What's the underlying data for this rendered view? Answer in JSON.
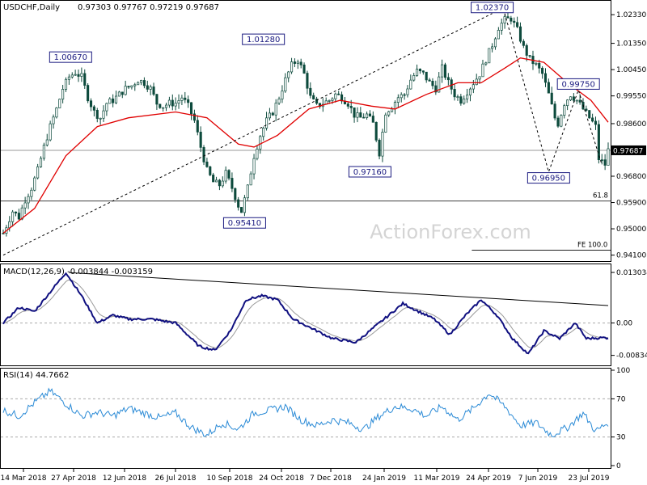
{
  "chart_data": {
    "type": "candlestick",
    "instrument": "USDCHF,Daily",
    "ohlc_text": "0.97303 0.97767 0.97219 0.97687",
    "watermark": "ActionForex.com",
    "x_ticks": [
      "14 Mar 2018",
      "27 Apr 2018",
      "12 Jun 2018",
      "26 Jul 2018",
      "10 Sep 2018",
      "24 Oct 2018",
      "7 Dec 2018",
      "24 Jan 2019",
      "11 Mar 2019",
      "24 Apr 2019",
      "7 Jun 2019",
      "23 Jul 2019"
    ],
    "price": {
      "y_ticks": [
        "1.02330",
        "1.01350",
        "1.00450",
        "0.99550",
        "0.98600",
        "0.97687",
        "0.96800",
        "0.95900",
        "0.95000",
        "0.94100"
      ],
      "ylim": [
        0.9395,
        1.0275
      ],
      "current": 0.97687,
      "current_label": "0.97687",
      "anchors": [
        {
          "d": 0,
          "p": 0.9485
        },
        {
          "d": 6,
          "p": 0.956
        },
        {
          "d": 10,
          "p": 0.954
        },
        {
          "d": 14,
          "p": 0.96
        },
        {
          "d": 18,
          "p": 0.964
        },
        {
          "d": 22,
          "p": 0.97
        },
        {
          "d": 26,
          "p": 0.978
        },
        {
          "d": 30,
          "p": 0.985
        },
        {
          "d": 34,
          "p": 0.991
        },
        {
          "d": 38,
          "p": 0.998
        },
        {
          "d": 42,
          "p": 1.002
        },
        {
          "d": 46,
          "p": 1.0035
        },
        {
          "d": 50,
          "p": 1.002
        },
        {
          "d": 54,
          "p": 0.995
        },
        {
          "d": 58,
          "p": 0.99
        },
        {
          "d": 62,
          "p": 0.988
        },
        {
          "d": 66,
          "p": 0.993
        },
        {
          "d": 70,
          "p": 0.994
        },
        {
          "d": 74,
          "p": 0.996
        },
        {
          "d": 78,
          "p": 0.998
        },
        {
          "d": 82,
          "p": 0.999
        },
        {
          "d": 86,
          "p": 1.001
        },
        {
          "d": 90,
          "p": 1.0
        },
        {
          "d": 94,
          "p": 0.998
        },
        {
          "d": 98,
          "p": 0.993
        },
        {
          "d": 102,
          "p": 0.992
        },
        {
          "d": 106,
          "p": 0.993
        },
        {
          "d": 110,
          "p": 0.993
        },
        {
          "d": 114,
          "p": 0.995
        },
        {
          "d": 118,
          "p": 0.992
        },
        {
          "d": 122,
          "p": 0.987
        },
        {
          "d": 126,
          "p": 0.978
        },
        {
          "d": 130,
          "p": 0.97
        },
        {
          "d": 134,
          "p": 0.966
        },
        {
          "d": 138,
          "p": 0.965
        },
        {
          "d": 142,
          "p": 0.969
        },
        {
          "d": 146,
          "p": 0.964
        },
        {
          "d": 150,
          "p": 0.958
        },
        {
          "d": 152,
          "p": 0.956
        },
        {
          "d": 156,
          "p": 0.964
        },
        {
          "d": 160,
          "p": 0.975
        },
        {
          "d": 164,
          "p": 0.982
        },
        {
          "d": 168,
          "p": 0.987
        },
        {
          "d": 172,
          "p": 0.99
        },
        {
          "d": 176,
          "p": 0.995
        },
        {
          "d": 180,
          "p": 1.001
        },
        {
          "d": 184,
          "p": 1.006
        },
        {
          "d": 188,
          "p": 1.008
        },
        {
          "d": 192,
          "p": 1.003
        },
        {
          "d": 196,
          "p": 0.995
        },
        {
          "d": 200,
          "p": 0.992
        },
        {
          "d": 204,
          "p": 0.993
        },
        {
          "d": 208,
          "p": 0.994
        },
        {
          "d": 212,
          "p": 0.996
        },
        {
          "d": 216,
          "p": 0.995
        },
        {
          "d": 220,
          "p": 0.993
        },
        {
          "d": 224,
          "p": 0.989
        },
        {
          "d": 228,
          "p": 0.988
        },
        {
          "d": 232,
          "p": 0.989
        },
        {
          "d": 236,
          "p": 0.986
        },
        {
          "d": 240,
          "p": 0.976
        },
        {
          "d": 244,
          "p": 0.99
        },
        {
          "d": 248,
          "p": 0.992
        },
        {
          "d": 252,
          "p": 0.995
        },
        {
          "d": 256,
          "p": 0.996
        },
        {
          "d": 260,
          "p": 1.001
        },
        {
          "d": 264,
          "p": 1.004
        },
        {
          "d": 268,
          "p": 1.003
        },
        {
          "d": 272,
          "p": 1.0
        },
        {
          "d": 276,
          "p": 0.998
        },
        {
          "d": 280,
          "p": 1.005
        },
        {
          "d": 284,
          "p": 1.0
        },
        {
          "d": 288,
          "p": 0.996
        },
        {
          "d": 292,
          "p": 0.994
        },
        {
          "d": 296,
          "p": 0.997
        },
        {
          "d": 300,
          "p": 1.0
        },
        {
          "d": 304,
          "p": 1.003
        },
        {
          "d": 308,
          "p": 1.008
        },
        {
          "d": 312,
          "p": 1.013
        },
        {
          "d": 316,
          "p": 1.019
        },
        {
          "d": 320,
          "p": 1.0215
        },
        {
          "d": 324,
          "p": 1.022
        },
        {
          "d": 328,
          "p": 1.018
        },
        {
          "d": 332,
          "p": 1.012
        },
        {
          "d": 336,
          "p": 1.008
        },
        {
          "d": 340,
          "p": 1.006
        },
        {
          "d": 344,
          "p": 1.003
        },
        {
          "d": 348,
          "p": 0.996
        },
        {
          "d": 352,
          "p": 0.988
        },
        {
          "d": 354,
          "p": 0.986
        },
        {
          "d": 358,
          "p": 0.993
        },
        {
          "d": 362,
          "p": 0.996
        },
        {
          "d": 366,
          "p": 0.994
        },
        {
          "d": 370,
          "p": 0.991
        },
        {
          "d": 374,
          "p": 0.988
        },
        {
          "d": 378,
          "p": 0.985
        },
        {
          "d": 380,
          "p": 0.974
        },
        {
          "d": 384,
          "p": 0.972
        },
        {
          "d": 386,
          "p": 0.9769
        }
      ],
      "ma": [
        {
          "d": 0,
          "p": 0.9485
        },
        {
          "d": 20,
          "p": 0.957
        },
        {
          "d": 40,
          "p": 0.975
        },
        {
          "d": 60,
          "p": 0.985
        },
        {
          "d": 80,
          "p": 0.988
        },
        {
          "d": 110,
          "p": 0.99
        },
        {
          "d": 130,
          "p": 0.988
        },
        {
          "d": 150,
          "p": 0.979
        },
        {
          "d": 160,
          "p": 0.978
        },
        {
          "d": 175,
          "p": 0.982
        },
        {
          "d": 195,
          "p": 0.991
        },
        {
          "d": 215,
          "p": 0.994
        },
        {
          "d": 235,
          "p": 0.992
        },
        {
          "d": 250,
          "p": 0.991
        },
        {
          "d": 270,
          "p": 0.996
        },
        {
          "d": 290,
          "p": 1.0
        },
        {
          "d": 305,
          "p": 1.0
        },
        {
          "d": 320,
          "p": 1.005
        },
        {
          "d": 330,
          "p": 1.0085
        },
        {
          "d": 345,
          "p": 1.007
        },
        {
          "d": 360,
          "p": 1.0
        },
        {
          "d": 375,
          "p": 0.994
        },
        {
          "d": 386,
          "p": 0.9865
        }
      ],
      "labels": [
        {
          "text": "1.00670",
          "d": 43,
          "p": 1.0067
        },
        {
          "text": "1.01280",
          "d": 166,
          "p": 1.0128
        },
        {
          "text": "1.02370",
          "d": 312,
          "p": 1.0237
        },
        {
          "text": "0.97160",
          "d": 234,
          "p": 0.9716
        },
        {
          "text": "0.95410",
          "d": 154,
          "p": 0.9541
        },
        {
          "text": "0.96950",
          "d": 348,
          "p": 0.9695
        },
        {
          "text": "0.99750",
          "d": 367,
          "p": 0.9975
        }
      ],
      "trendline": [
        {
          "d": 0,
          "p": 0.941
        },
        {
          "d": 312,
          "p": 1.0237
        }
      ],
      "zigzag": [
        {
          "d": 320,
          "p": 1.0237
        },
        {
          "d": 348,
          "p": 0.9695
        },
        {
          "d": 367,
          "p": 0.9975
        },
        {
          "d": 382,
          "p": 0.972
        }
      ],
      "fib_618": {
        "label": "61.8",
        "p": 0.9595
      },
      "fe_100": {
        "label": "FE 100.0",
        "p": 0.9427,
        "d_start": 299
      }
    },
    "macd": {
      "title": "MACD(12,26,9) -0.003844 -0.003159",
      "y_ticks": [
        "0.013034",
        "0.00",
        "-0.00834"
      ],
      "ylim": [
        -0.0105,
        0.0145
      ],
      "zero": 0.0,
      "line": [
        {
          "d": 0,
          "v": 0.0
        },
        {
          "d": 10,
          "v": 0.004
        },
        {
          "d": 20,
          "v": 0.003
        },
        {
          "d": 30,
          "v": 0.008
        },
        {
          "d": 40,
          "v": 0.013
        },
        {
          "d": 50,
          "v": 0.007
        },
        {
          "d": 60,
          "v": 0.0
        },
        {
          "d": 70,
          "v": 0.002
        },
        {
          "d": 80,
          "v": 0.001
        },
        {
          "d": 95,
          "v": 0.001
        },
        {
          "d": 110,
          "v": 0.0
        },
        {
          "d": 125,
          "v": -0.006
        },
        {
          "d": 135,
          "v": -0.007
        },
        {
          "d": 145,
          "v": -0.002
        },
        {
          "d": 155,
          "v": 0.006
        },
        {
          "d": 165,
          "v": 0.007
        },
        {
          "d": 175,
          "v": 0.006
        },
        {
          "d": 185,
          "v": 0.001
        },
        {
          "d": 200,
          "v": -0.002
        },
        {
          "d": 210,
          "v": -0.004
        },
        {
          "d": 225,
          "v": -0.005
        },
        {
          "d": 240,
          "v": 0.0
        },
        {
          "d": 255,
          "v": 0.005
        },
        {
          "d": 265,
          "v": 0.003
        },
        {
          "d": 275,
          "v": 0.001
        },
        {
          "d": 285,
          "v": -0.003
        },
        {
          "d": 295,
          "v": 0.002
        },
        {
          "d": 305,
          "v": 0.006
        },
        {
          "d": 315,
          "v": 0.002
        },
        {
          "d": 325,
          "v": -0.004
        },
        {
          "d": 335,
          "v": -0.008
        },
        {
          "d": 345,
          "v": -0.002
        },
        {
          "d": 355,
          "v": -0.004
        },
        {
          "d": 365,
          "v": 0.0
        },
        {
          "d": 372,
          "v": -0.004
        },
        {
          "d": 382,
          "v": -0.0038
        },
        {
          "d": 386,
          "v": -0.0038
        }
      ],
      "trendline": [
        {
          "d": 42,
          "v": 0.013
        },
        {
          "d": 386,
          "v": 0.0045
        }
      ]
    },
    "rsi": {
      "title": "RSI(14) 44.7662",
      "y_ticks": [
        "100",
        "70",
        "30",
        "0"
      ],
      "levels": [
        70,
        30
      ],
      "ylim": [
        0,
        100
      ],
      "anchors": [
        {
          "d": 0,
          "v": 58
        },
        {
          "d": 10,
          "v": 52
        },
        {
          "d": 20,
          "v": 66
        },
        {
          "d": 30,
          "v": 78
        },
        {
          "d": 40,
          "v": 65
        },
        {
          "d": 50,
          "v": 52
        },
        {
          "d": 60,
          "v": 56
        },
        {
          "d": 70,
          "v": 52
        },
        {
          "d": 80,
          "v": 60
        },
        {
          "d": 90,
          "v": 55
        },
        {
          "d": 100,
          "v": 50
        },
        {
          "d": 110,
          "v": 55
        },
        {
          "d": 120,
          "v": 40
        },
        {
          "d": 130,
          "v": 32
        },
        {
          "d": 140,
          "v": 45
        },
        {
          "d": 150,
          "v": 38
        },
        {
          "d": 160,
          "v": 55
        },
        {
          "d": 170,
          "v": 58
        },
        {
          "d": 180,
          "v": 62
        },
        {
          "d": 190,
          "v": 48
        },
        {
          "d": 200,
          "v": 42
        },
        {
          "d": 210,
          "v": 48
        },
        {
          "d": 220,
          "v": 45
        },
        {
          "d": 230,
          "v": 38
        },
        {
          "d": 240,
          "v": 52
        },
        {
          "d": 250,
          "v": 62
        },
        {
          "d": 260,
          "v": 60
        },
        {
          "d": 270,
          "v": 52
        },
        {
          "d": 280,
          "v": 62
        },
        {
          "d": 290,
          "v": 48
        },
        {
          "d": 300,
          "v": 60
        },
        {
          "d": 310,
          "v": 76
        },
        {
          "d": 320,
          "v": 62
        },
        {
          "d": 330,
          "v": 42
        },
        {
          "d": 340,
          "v": 45
        },
        {
          "d": 350,
          "v": 32
        },
        {
          "d": 360,
          "v": 40
        },
        {
          "d": 370,
          "v": 55
        },
        {
          "d": 378,
          "v": 36
        },
        {
          "d": 386,
          "v": 45
        }
      ]
    }
  }
}
